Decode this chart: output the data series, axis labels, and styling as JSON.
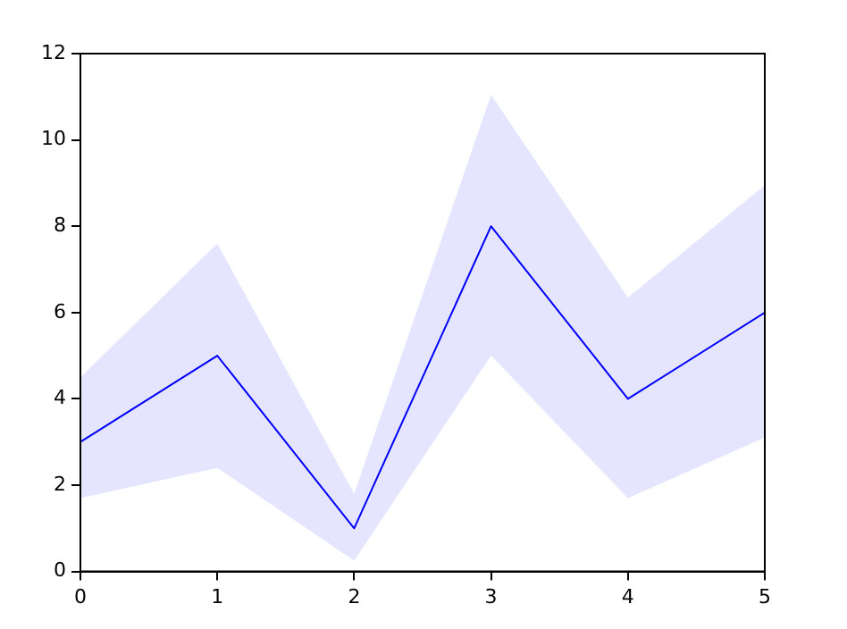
{
  "chart_data": {
    "type": "line",
    "x": [
      0,
      1,
      2,
      3,
      4,
      5
    ],
    "xlim": [
      0,
      5
    ],
    "xticks": [
      0,
      1,
      2,
      3,
      4,
      5
    ],
    "ylim": [
      0,
      12
    ],
    "yticks": [
      0,
      2,
      4,
      6,
      8,
      10,
      12
    ],
    "series": [
      {
        "color": "#0000ff",
        "values": [
          3,
          5,
          1,
          8,
          4,
          6
        ],
        "lower": [
          1.7,
          2.4,
          0.25,
          5.0,
          1.7,
          3.1
        ],
        "upper": [
          4.5,
          7.6,
          1.8,
          11.05,
          6.35,
          8.95
        ]
      }
    ]
  }
}
